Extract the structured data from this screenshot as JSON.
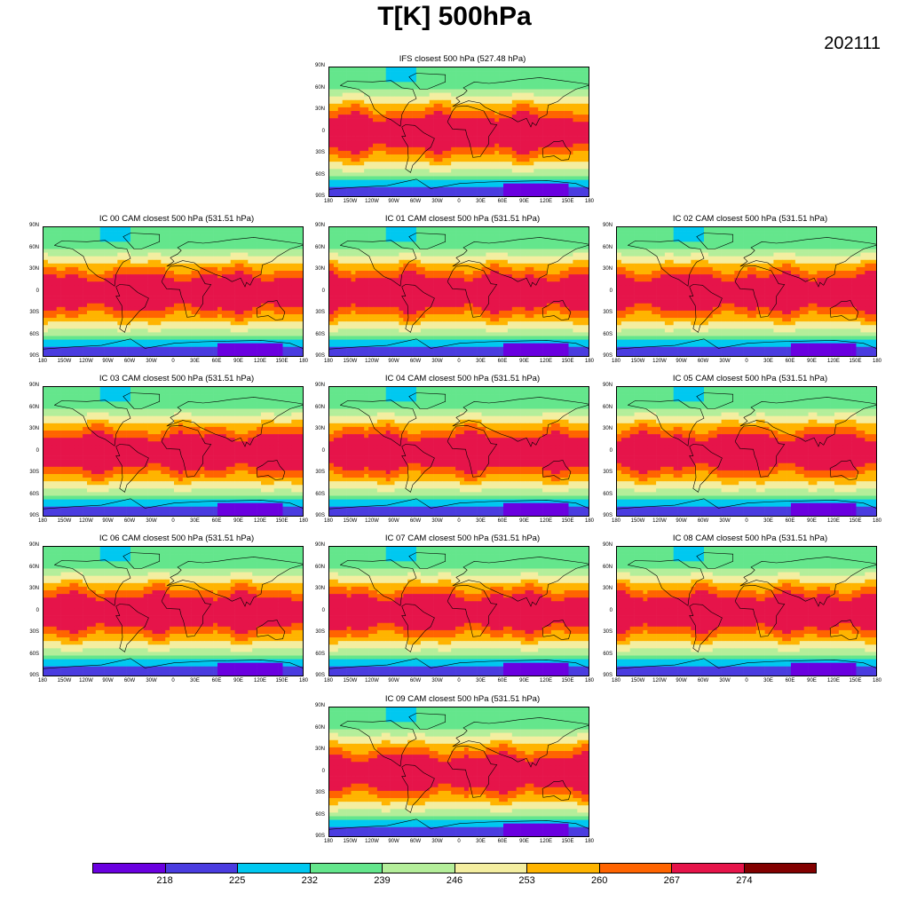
{
  "title": "T[K] 500hPa",
  "date": "202111",
  "panels": [
    {
      "title": "IFS closest 500 hPa (527.48 hPa)",
      "variant": 0
    },
    {
      "title": "IC 00 CAM closest 500 hPa (531.51 hPa)",
      "variant": 1
    },
    {
      "title": "IC 01 CAM closest 500 hPa (531.51 hPa)",
      "variant": 2
    },
    {
      "title": "IC 02 CAM closest 500 hPa (531.51 hPa)",
      "variant": 3
    },
    {
      "title": "IC 03 CAM closest 500 hPa (531.51 hPa)",
      "variant": 4
    },
    {
      "title": "IC 04 CAM closest 500 hPa (531.51 hPa)",
      "variant": 5
    },
    {
      "title": "IC 05 CAM closest 500 hPa (531.51 hPa)",
      "variant": 6
    },
    {
      "title": "IC 06 CAM closest 500 hPa (531.51 hPa)",
      "variant": 7
    },
    {
      "title": "IC 07 CAM closest 500 hPa (531.51 hPa)",
      "variant": 8
    },
    {
      "title": "IC 08 CAM closest 500 hPa (531.51 hPa)",
      "variant": 9
    },
    {
      "title": "IC 09 CAM closest 500 hPa (531.51 hPa)",
      "variant": 10
    }
  ],
  "lat_ticks": [
    "90N",
    "60N",
    "30N",
    "0",
    "30S",
    "60S",
    "90S"
  ],
  "lon_ticks": [
    "180",
    "150W",
    "120W",
    "90W",
    "60W",
    "30W",
    "0",
    "30E",
    "60E",
    "90E",
    "120E",
    "150E",
    "180"
  ],
  "chart_data": {
    "type": "heatmap",
    "title": "T[K] 500hPa",
    "subtitle": "202111",
    "x_range": [
      -180,
      180
    ],
    "y_range": [
      -90,
      90
    ],
    "colorbar": {
      "levels": [
        218,
        225,
        232,
        239,
        246,
        253,
        260,
        267,
        274
      ],
      "colors": [
        "#6a00e0",
        "#4a3ce0",
        "#00c8f0",
        "#64e68c",
        "#b4ee9a",
        "#f4eea0",
        "#ffb400",
        "#ff6400",
        "#e6144a",
        "#820000"
      ]
    }
  }
}
